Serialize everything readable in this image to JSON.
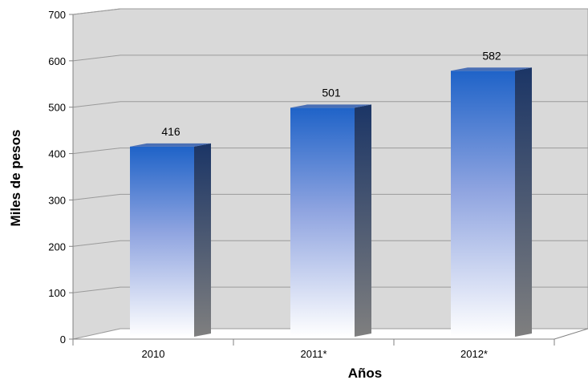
{
  "chart_data": {
    "type": "bar",
    "categories": [
      "2010",
      "2011*",
      "2012*"
    ],
    "values": [
      416,
      501,
      582
    ],
    "data_labels": [
      "416",
      "501",
      "582"
    ],
    "xlabel": "Años",
    "ylabel": "Miles de pesos",
    "ylim": [
      0,
      700
    ],
    "yticks": [
      "0",
      "100",
      "200",
      "300",
      "400",
      "500",
      "600",
      "700"
    ],
    "grid": true,
    "style": "3d-column",
    "colors": {
      "bar_top": "#1f63c8",
      "bar_bottom": "#ffffff",
      "bar_side_top": "#1b3566",
      "bar_side_bottom": "#7f7f7f",
      "back_wall": "#d9d9d9",
      "gridline": "#9a9a9a"
    }
  }
}
